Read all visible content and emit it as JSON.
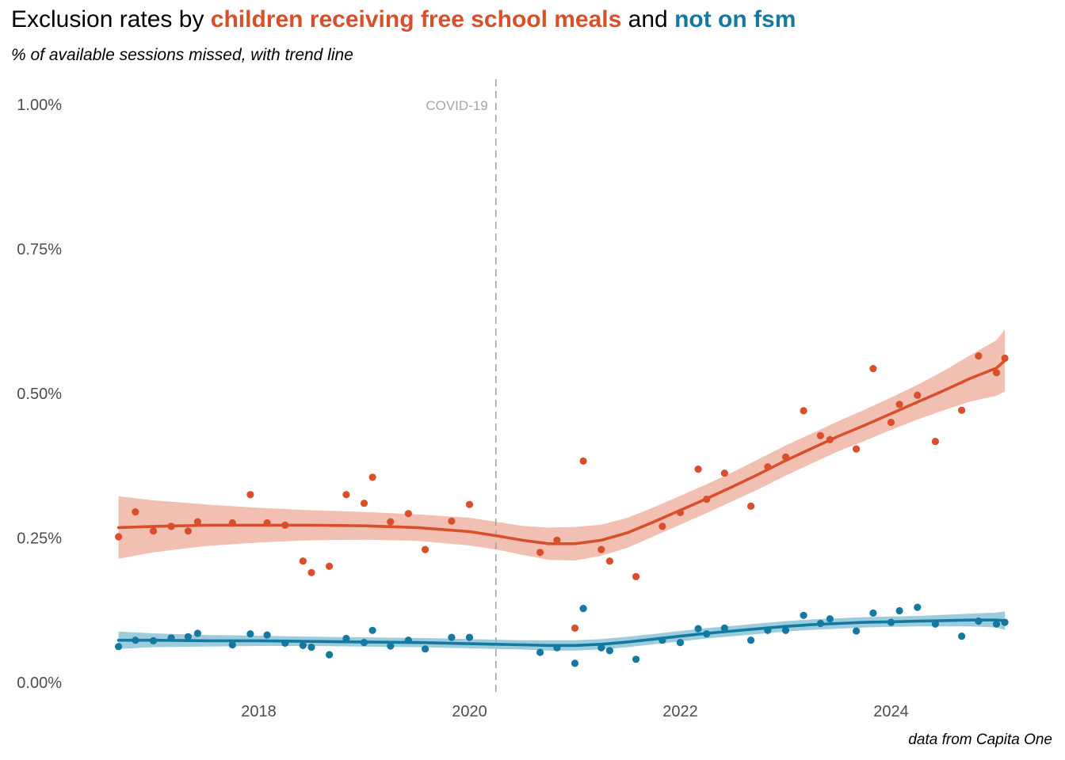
{
  "title": {
    "prefix": "Exclusion rates by ",
    "highlight1": "children receiving free school meals",
    "middle": " and ",
    "highlight2": "not on fsm"
  },
  "subtitle": "% of available sessions missed, with trend line",
  "caption": "data from Capita One",
  "colors": {
    "fsm": "#d94f2b",
    "not_fsm": "#1479a0",
    "fsm_band": "#efb5a4",
    "not_fsm_band": "#8cc3d6",
    "vline": "#a6a6a6"
  },
  "chart_data": {
    "type": "scatter",
    "x_axis": {
      "ticks": [
        2018,
        2020,
        2022,
        2024
      ],
      "tick_labels": [
        "2018",
        "2020",
        "2022",
        "2024"
      ],
      "range": [
        2016.5,
        2025.3
      ]
    },
    "y_axis": {
      "ticks": [
        0,
        0.25,
        0.5,
        0.75,
        1.0
      ],
      "tick_labels": [
        "0.00%",
        "0.25%",
        "0.50%",
        "0.75%",
        "1.00%"
      ],
      "range": [
        0,
        1.05
      ],
      "unit": "%"
    },
    "grid": false,
    "annotations": [
      {
        "type": "vline",
        "x": 2020.25,
        "label": "COVID-19"
      }
    ],
    "series": [
      {
        "name": "children receiving free school meals",
        "color": "#d94f2b",
        "points": [
          [
            2016.67,
            0.252
          ],
          [
            2016.83,
            0.295
          ],
          [
            2017.0,
            0.262
          ],
          [
            2017.17,
            0.27
          ],
          [
            2017.33,
            0.262
          ],
          [
            2017.42,
            0.278
          ],
          [
            2017.75,
            0.276
          ],
          [
            2017.92,
            0.325
          ],
          [
            2018.08,
            0.276
          ],
          [
            2018.25,
            0.272
          ],
          [
            2018.42,
            0.21
          ],
          [
            2018.5,
            0.19
          ],
          [
            2018.67,
            0.201
          ],
          [
            2018.83,
            0.325
          ],
          [
            2019.0,
            0.31
          ],
          [
            2019.08,
            0.355
          ],
          [
            2019.25,
            0.278
          ],
          [
            2019.42,
            0.292
          ],
          [
            2019.58,
            0.23
          ],
          [
            2019.83,
            0.279
          ],
          [
            2020.0,
            0.308
          ],
          [
            2020.67,
            0.225
          ],
          [
            2020.83,
            0.246
          ],
          [
            2021.0,
            0.094
          ],
          [
            2021.08,
            0.383
          ],
          [
            2021.25,
            0.23
          ],
          [
            2021.33,
            0.21
          ],
          [
            2021.58,
            0.183
          ],
          [
            2021.83,
            0.27
          ],
          [
            2022.0,
            0.294
          ],
          [
            2022.17,
            0.369
          ],
          [
            2022.25,
            0.317
          ],
          [
            2022.42,
            0.362
          ],
          [
            2022.67,
            0.305
          ],
          [
            2022.83,
            0.373
          ],
          [
            2023.0,
            0.39
          ],
          [
            2023.17,
            0.47
          ],
          [
            2023.33,
            0.427
          ],
          [
            2023.42,
            0.42
          ],
          [
            2023.67,
            0.404
          ],
          [
            2023.83,
            0.543
          ],
          [
            2024.0,
            0.45
          ],
          [
            2024.08,
            0.481
          ],
          [
            2024.25,
            0.497
          ],
          [
            2024.42,
            0.417
          ],
          [
            2024.67,
            0.471
          ],
          [
            2024.83,
            0.565
          ],
          [
            2025.0,
            0.536
          ],
          [
            2025.08,
            0.561
          ]
        ],
        "trend": [
          [
            2016.67,
            0.268
          ],
          [
            2017.0,
            0.27
          ],
          [
            2017.5,
            0.272
          ],
          [
            2018.0,
            0.272
          ],
          [
            2018.5,
            0.272
          ],
          [
            2019.0,
            0.271
          ],
          [
            2019.5,
            0.268
          ],
          [
            2020.0,
            0.261
          ],
          [
            2020.25,
            0.254
          ],
          [
            2020.5,
            0.246
          ],
          [
            2020.75,
            0.24
          ],
          [
            2021.0,
            0.24
          ],
          [
            2021.25,
            0.246
          ],
          [
            2021.5,
            0.259
          ],
          [
            2021.75,
            0.278
          ],
          [
            2022.0,
            0.298
          ],
          [
            2022.25,
            0.318
          ],
          [
            2022.5,
            0.339
          ],
          [
            2022.75,
            0.361
          ],
          [
            2023.0,
            0.384
          ],
          [
            2023.25,
            0.405
          ],
          [
            2023.5,
            0.426
          ],
          [
            2023.75,
            0.445
          ],
          [
            2024.0,
            0.465
          ],
          [
            2024.25,
            0.485
          ],
          [
            2024.5,
            0.505
          ],
          [
            2024.75,
            0.526
          ],
          [
            2025.0,
            0.544
          ],
          [
            2025.08,
            0.557
          ]
        ],
        "band_halfwidth": [
          0.054,
          0.045,
          0.036,
          0.03,
          0.026,
          0.024,
          0.023,
          0.024,
          0.024,
          0.025,
          0.028,
          0.029,
          0.027,
          0.026,
          0.025,
          0.025,
          0.025,
          0.025,
          0.026,
          0.026,
          0.026,
          0.026,
          0.027,
          0.028,
          0.03,
          0.034,
          0.04,
          0.048,
          0.054
        ]
      },
      {
        "name": "not on fsm",
        "color": "#1479a0",
        "points": [
          [
            2016.67,
            0.062
          ],
          [
            2016.83,
            0.073
          ],
          [
            2017.0,
            0.072
          ],
          [
            2017.17,
            0.077
          ],
          [
            2017.33,
            0.079
          ],
          [
            2017.42,
            0.085
          ],
          [
            2017.75,
            0.065
          ],
          [
            2017.92,
            0.084
          ],
          [
            2018.08,
            0.082
          ],
          [
            2018.25,
            0.068
          ],
          [
            2018.42,
            0.064
          ],
          [
            2018.5,
            0.061
          ],
          [
            2018.67,
            0.048
          ],
          [
            2018.83,
            0.076
          ],
          [
            2019.0,
            0.069
          ],
          [
            2019.08,
            0.09
          ],
          [
            2019.25,
            0.063
          ],
          [
            2019.42,
            0.073
          ],
          [
            2019.58,
            0.058
          ],
          [
            2019.83,
            0.078
          ],
          [
            2020.0,
            0.078
          ],
          [
            2020.67,
            0.052
          ],
          [
            2020.83,
            0.06
          ],
          [
            2021.0,
            0.033
          ],
          [
            2021.08,
            0.128
          ],
          [
            2021.25,
            0.06
          ],
          [
            2021.33,
            0.055
          ],
          [
            2021.58,
            0.04
          ],
          [
            2021.83,
            0.073
          ],
          [
            2022.0,
            0.069
          ],
          [
            2022.17,
            0.093
          ],
          [
            2022.25,
            0.084
          ],
          [
            2022.42,
            0.094
          ],
          [
            2022.67,
            0.073
          ],
          [
            2022.83,
            0.09
          ],
          [
            2023.0,
            0.09
          ],
          [
            2023.17,
            0.116
          ],
          [
            2023.33,
            0.102
          ],
          [
            2023.42,
            0.11
          ],
          [
            2023.67,
            0.089
          ],
          [
            2023.83,
            0.12
          ],
          [
            2024.0,
            0.104
          ],
          [
            2024.08,
            0.124
          ],
          [
            2024.25,
            0.13
          ],
          [
            2024.42,
            0.101
          ],
          [
            2024.67,
            0.08
          ],
          [
            2024.83,
            0.106
          ],
          [
            2025.0,
            0.101
          ],
          [
            2025.08,
            0.104
          ]
        ],
        "trend": [
          [
            2016.67,
            0.073
          ],
          [
            2017.0,
            0.073
          ],
          [
            2017.5,
            0.072
          ],
          [
            2018.0,
            0.072
          ],
          [
            2018.5,
            0.071
          ],
          [
            2019.0,
            0.07
          ],
          [
            2019.5,
            0.069
          ],
          [
            2020.0,
            0.067
          ],
          [
            2020.25,
            0.066
          ],
          [
            2020.5,
            0.065
          ],
          [
            2020.75,
            0.064
          ],
          [
            2021.0,
            0.064
          ],
          [
            2021.25,
            0.066
          ],
          [
            2021.5,
            0.07
          ],
          [
            2021.75,
            0.075
          ],
          [
            2022.0,
            0.08
          ],
          [
            2022.25,
            0.085
          ],
          [
            2022.5,
            0.089
          ],
          [
            2022.75,
            0.093
          ],
          [
            2023.0,
            0.097
          ],
          [
            2023.25,
            0.1
          ],
          [
            2023.5,
            0.102
          ],
          [
            2023.75,
            0.104
          ],
          [
            2024.0,
            0.105
          ],
          [
            2024.25,
            0.106
          ],
          [
            2024.5,
            0.107
          ],
          [
            2024.75,
            0.108
          ],
          [
            2025.0,
            0.108
          ],
          [
            2025.08,
            0.107
          ]
        ],
        "band_halfwidth": [
          0.015,
          0.012,
          0.01,
          0.009,
          0.008,
          0.008,
          0.008,
          0.008,
          0.008,
          0.008,
          0.009,
          0.009,
          0.009,
          0.009,
          0.009,
          0.009,
          0.009,
          0.009,
          0.009,
          0.009,
          0.009,
          0.009,
          0.009,
          0.009,
          0.009,
          0.01,
          0.011,
          0.013,
          0.016
        ]
      }
    ]
  }
}
